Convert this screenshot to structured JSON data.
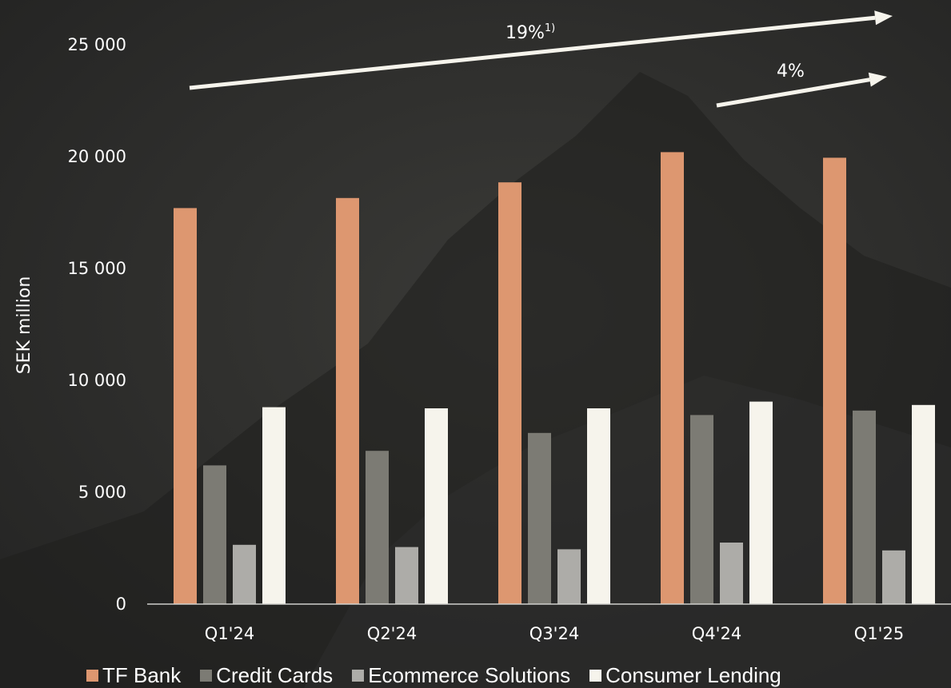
{
  "chart_data": {
    "type": "bar",
    "categories": [
      "Q1'24",
      "Q2'24",
      "Q3'24",
      "Q4'24",
      "Q1'25"
    ],
    "series": [
      {
        "name": "TF Bank",
        "color": "#dd9770",
        "values": [
          17700,
          18150,
          18850,
          20200,
          19950
        ]
      },
      {
        "name": "Credit Cards",
        "color": "#7c7b74",
        "values": [
          6200,
          6850,
          7650,
          8450,
          8650
        ]
      },
      {
        "name": "Ecommerce Solutions",
        "color": "#adaca8",
        "values": [
          2650,
          2550,
          2450,
          2750,
          2400
        ]
      },
      {
        "name": "Consumer Lending",
        "color": "#f6f4ec",
        "values": [
          8800,
          8750,
          8750,
          9050,
          8900
        ]
      }
    ],
    "ylabel": "SEK million",
    "xlabel": "",
    "ylim": [
      0,
      25000
    ],
    "yticks": [
      "0",
      "5 000",
      "10 000",
      "15 000",
      "20 000",
      "25 000"
    ],
    "grid": false,
    "legend_position": "bottom",
    "annotations": [
      {
        "label": "19%",
        "superscript": "1)",
        "from_category": "Q1'24",
        "to_category": "Q1'25"
      },
      {
        "label": "4%",
        "superscript": "",
        "from_category": "Q4'24",
        "to_category": "Q1'25"
      }
    ]
  }
}
